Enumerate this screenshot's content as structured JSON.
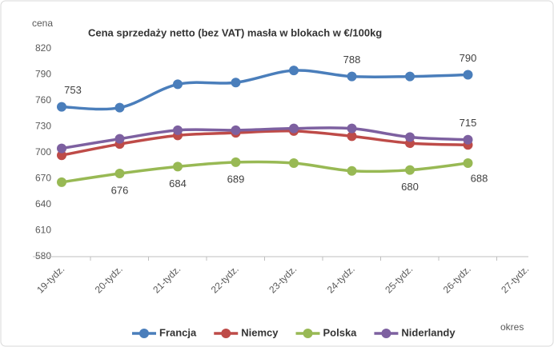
{
  "chart_data": {
    "type": "line",
    "title": "Cena sprzedaży netto (bez VAT) masła w blokach w €/100kg",
    "y_label": "cena",
    "x_label": "okres",
    "categories": [
      "19-tydz.",
      "20-tydz.",
      "21-tydz.",
      "22-tydz.",
      "23-tydz.",
      "24-tydz.",
      "25-tydz.",
      "26-tydz.",
      "27-tydz."
    ],
    "series": [
      {
        "name": "Francja",
        "color": "#4a7ebb",
        "values": [
          753,
          752,
          779,
          781,
          795,
          788,
          788,
          790,
          null
        ],
        "labeled": [
          0,
          5,
          7
        ]
      },
      {
        "name": "Niemcy",
        "color": "#be4b48",
        "values": [
          697,
          710,
          720,
          723,
          725,
          719,
          711,
          709,
          null
        ],
        "labeled": []
      },
      {
        "name": "Polska",
        "color": "#98b954",
        "values": [
          666,
          676,
          684,
          689,
          688,
          679,
          680,
          688,
          null
        ],
        "labeled": [
          1,
          2,
          3,
          6,
          7
        ]
      },
      {
        "name": "Niderlandy",
        "color": "#7d60a0",
        "values": [
          705,
          716,
          726,
          726,
          728,
          728,
          718,
          715,
          null
        ],
        "labeled": [
          7
        ]
      }
    ],
    "ylim": [
      580,
      820
    ],
    "yticks": [
      580,
      610,
      640,
      670,
      700,
      730,
      760,
      790,
      820
    ],
    "grid": false,
    "legend": "bottom",
    "smooth": true
  }
}
